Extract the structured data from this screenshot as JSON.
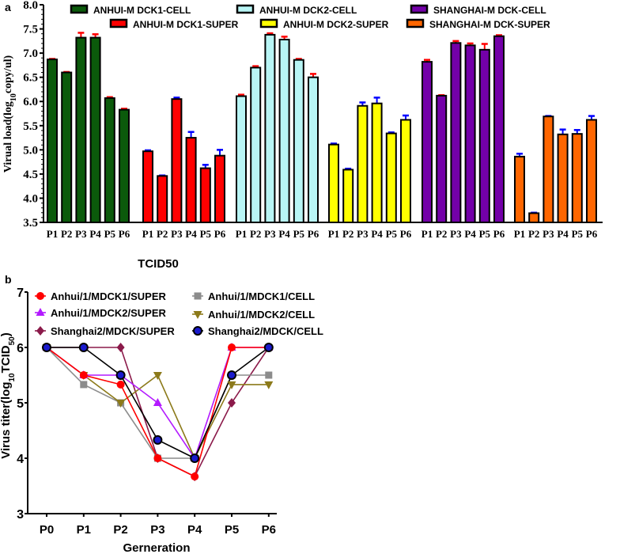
{
  "chart_data": [
    {
      "panel_label": "a",
      "type": "bar",
      "title": "",
      "ylabel_parts": [
        "Virual load(log",
        "10",
        "copy/ul)"
      ],
      "ylim": [
        3.5,
        8.0
      ],
      "yticks": [
        "3.5",
        "4.0",
        "4.5",
        "5.0",
        "5.5",
        "6.0",
        "6.5",
        "7.0",
        "7.5",
        "8.0"
      ],
      "categories": [
        "P1",
        "P2",
        "P3",
        "P4",
        "P5",
        "P6"
      ],
      "legend_placement": "top",
      "series": [
        {
          "name": "ANHUI-M DCK1-CELL",
          "color": "#0b5a0b",
          "error_color": "#ff0000",
          "values": [
            6.87,
            6.6,
            7.32,
            7.32,
            6.07,
            5.83
          ],
          "errors": [
            0.01,
            0.01,
            0.1,
            0.07,
            0.02,
            0.02
          ]
        },
        {
          "name": "ANHUI-M DCK1-SUPER",
          "color": "#ff0000",
          "error_color": "#0000ff",
          "values": [
            4.97,
            4.46,
            6.05,
            5.25,
            4.62,
            4.88
          ],
          "errors": [
            0.02,
            0.01,
            0.03,
            0.12,
            0.07,
            0.12
          ]
        },
        {
          "name": "ANHUI-M DCK2-CELL",
          "color": "#b8f5f5",
          "error_color": "#ff0000",
          "values": [
            6.11,
            6.7,
            7.38,
            7.28,
            6.86,
            6.5
          ],
          "errors": [
            0.03,
            0.03,
            0.03,
            0.06,
            0.02,
            0.07
          ]
        },
        {
          "name": "ANHUI-M DCK2-SUPER",
          "color": "#ffff00",
          "error_color": "#0000ff",
          "values": [
            5.11,
            4.59,
            5.91,
            5.96,
            5.34,
            5.62
          ],
          "errors": [
            0.02,
            0.02,
            0.07,
            0.12,
            0.02,
            0.09
          ]
        },
        {
          "name": "SHANGHAI-M DCK-CELL",
          "color": "#7300a8",
          "error_color": "#ff0000",
          "values": [
            6.82,
            6.12,
            7.21,
            7.16,
            7.07,
            7.35
          ],
          "errors": [
            0.04,
            0.01,
            0.04,
            0.04,
            0.12,
            0.02
          ]
        },
        {
          "name": "SHANGHAI-M DCK-SUPER",
          "color": "#ff6600",
          "error_color": "#0000ff",
          "values": [
            4.86,
            3.69,
            5.69,
            5.32,
            5.33,
            5.62
          ],
          "errors": [
            0.06,
            0.01,
            0.01,
            0.1,
            0.08,
            0.08
          ]
        }
      ]
    },
    {
      "panel_label": "b",
      "type": "line",
      "title": "TCID50",
      "xlabel": "Gerneration",
      "ylabel_parts": [
        "Virus titer(log",
        "10",
        "TCID",
        "50",
        ")"
      ],
      "ylim": [
        3,
        7
      ],
      "yticks": [
        "3",
        "4",
        "5",
        "6",
        "7"
      ],
      "categories": [
        "P0",
        "P1",
        "P2",
        "P3",
        "P4",
        "P5",
        "P6"
      ],
      "legend_placement": "top-left",
      "series": [
        {
          "name": "Anhui/1/MDCK1/SUPER",
          "color": "#ff0000",
          "marker": "circle",
          "values": [
            6,
            5.5,
            5.33,
            4,
            3.67,
            6,
            6
          ]
        },
        {
          "name": "Anhui/1/MDCK1/CELL",
          "color": "#8c8c8c",
          "marker": "square",
          "values": [
            6,
            5.33,
            5,
            4,
            4,
            5.5,
            5.5
          ]
        },
        {
          "name": "Anhui/1/MDCK2/SUPER",
          "color": "#b31aff",
          "marker": "triangle-up",
          "values": [
            6,
            5.5,
            5.5,
            5,
            4,
            6,
            6
          ]
        },
        {
          "name": "Anhui/1/MDCK2/CELL",
          "color": "#8c7a1a",
          "marker": "triangle-down",
          "values": [
            6,
            5.5,
            5,
            5.5,
            4,
            5.33,
            5.33
          ]
        },
        {
          "name": "Shanghai2/MDCK/SUPER",
          "color": "#8b1a4a",
          "marker": "diamond",
          "values": [
            6,
            6,
            6,
            4,
            3.67,
            5,
            6
          ]
        },
        {
          "name": "Shanghai2/MDCK/CELL",
          "color": "#000000",
          "fill": "#1a1acc",
          "marker": "circle-outlined",
          "values": [
            6,
            6,
            5.5,
            4.33,
            4,
            5.5,
            6
          ]
        }
      ]
    }
  ]
}
